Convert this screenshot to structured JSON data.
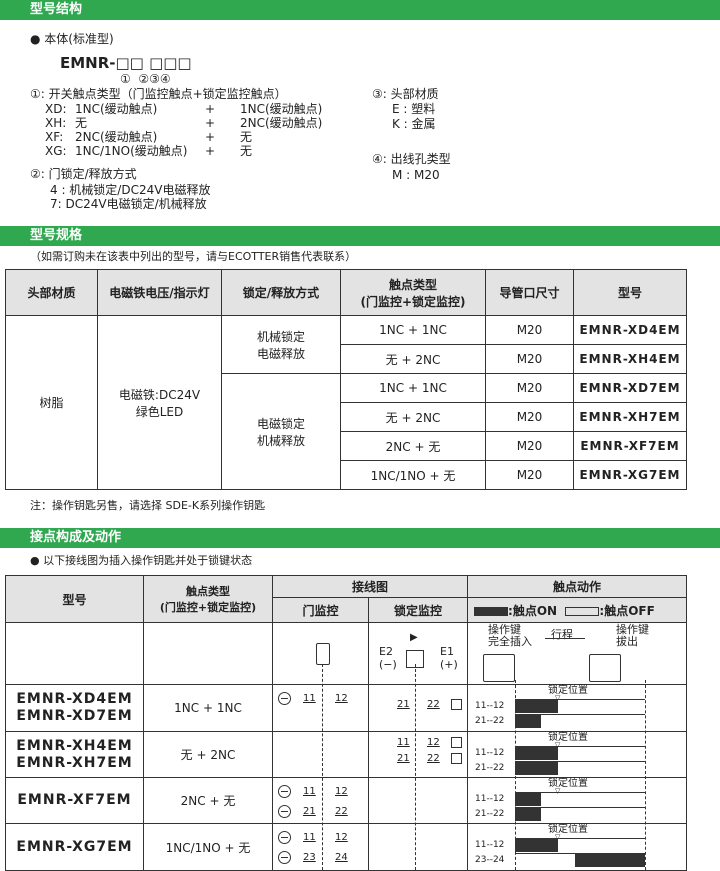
{
  "s1": {
    "title": "型号结构",
    "bullet": "● 本体(标准型)",
    "code": "EMNR-□□ □□□",
    "code_idx": "①  ②③④",
    "c1_title": "①: 开关触点类型（门监控触点+锁定监控触点）",
    "c1_rows": [
      [
        "XD:",
        "1NC(缓动触点)",
        "+",
        "1NC(缓动触点)"
      ],
      [
        "XH:",
        "无",
        "+",
        "2NC(缓动触点)"
      ],
      [
        "XF:",
        "2NC(缓动触点)",
        "+",
        "无"
      ],
      [
        "XG:",
        "1NC/1NO(缓动触点)",
        "+",
        "无"
      ]
    ],
    "c2_title": "②: 门锁定/释放方式",
    "c2_items": [
      "4 : 机械锁定/DC24V电磁释放",
      "7: DC24V电磁锁定/机械释放"
    ],
    "c3_title": "③: 头部材质",
    "c3_items": [
      "E : 塑料",
      "K : 金属"
    ],
    "c4_title": "④: 出线孔类型",
    "c4_items": [
      "M : M20"
    ]
  },
  "s2": {
    "title": "型号规格",
    "note_top": "（如需订购未在该表中列出的型号，请与ECOTTER销售代表联系）",
    "headers": [
      "头部材质",
      "电磁铁电压/指示灯",
      "锁定/释放方式",
      "触点类型\n(门监控+锁定监控)",
      "导管口尺寸",
      "型号"
    ],
    "material": "树脂",
    "voltage": "电磁铁:DC24V\n绿色LED",
    "lock1": "机械锁定\n电磁释放",
    "lock2": "电磁锁定\n机械释放",
    "rows": [
      [
        "1NC + 1NC",
        "M20",
        "EMNR-XD4EM"
      ],
      [
        "无 + 2NC",
        "M20",
        "EMNR-XH4EM"
      ],
      [
        "1NC + 1NC",
        "M20",
        "EMNR-XD7EM"
      ],
      [
        "无 + 2NC",
        "M20",
        "EMNR-XH7EM"
      ],
      [
        "2NC + 无",
        "M20",
        "EMNR-XF7EM"
      ],
      [
        "1NC/1NO + 无",
        "M20",
        "EMNR-XG7EM"
      ]
    ],
    "note_bottom": "注：操作钥匙另售，请选择 SDE-K系列操作钥匙"
  },
  "s3": {
    "title": "接点构成及动作",
    "bullet": "● 以下接线图为插入操作钥匙并处于锁键状态",
    "h_model": "型号",
    "h_contact": "触点类型\n(门监控+锁定监控)",
    "h_wiring": "接线图",
    "h_door": "门监控",
    "h_lock": "锁定监控",
    "h_action": "触点动作",
    "legend_on": ":触点ON",
    "legend_off": ":触点OFF",
    "key_in": "操作键\n完全插入",
    "stroke": "行程",
    "key_out": "操作键\n拔出",
    "e2": "E2\n(−)",
    "e1": "E1\n(+)",
    "lock_pos": "锁定位置",
    "rows": [
      {
        "models": "EMNR-XD4EM\nEMNR-XD7EM",
        "contact": "1NC + 1NC",
        "door": [
          "11",
          "12"
        ],
        "lock": [
          [
            "21",
            "22"
          ]
        ],
        "timing": [
          {
            "label": "11--12",
            "on": [
              0,
              0.33
            ]
          },
          {
            "label": "21--22",
            "on": [
              0,
              0.2
            ]
          }
        ]
      },
      {
        "models": "EMNR-XH4EM\nEMNR-XH7EM",
        "contact": "无 + 2NC",
        "door": null,
        "lock": [
          [
            "11",
            "12"
          ],
          [
            "21",
            "22"
          ]
        ],
        "timing": [
          {
            "label": "11--12",
            "on": [
              0,
              0.33
            ]
          },
          {
            "label": "21--22",
            "on": [
              0,
              0.33
            ]
          }
        ]
      },
      {
        "models": "EMNR-XF7EM",
        "contact": "2NC + 无",
        "door": [
          "11",
          "12",
          "21",
          "22"
        ],
        "lock": [],
        "timing": [
          {
            "label": "11--12",
            "on": [
              0,
              0.2
            ]
          },
          {
            "label": "21--22",
            "on": [
              0,
              0.2
            ]
          }
        ]
      },
      {
        "models": "EMNR-XG7EM",
        "contact": "1NC/1NO + 无",
        "door": [
          "11",
          "12",
          "23",
          "24"
        ],
        "lock": [],
        "timing": [
          {
            "label": "11--12",
            "on": [
              0,
              0.33
            ]
          },
          {
            "label": "23--24",
            "on": [
              0.46,
              1
            ]
          }
        ]
      }
    ]
  },
  "colors": {
    "accent": "#2fa84f",
    "header_bg": "#e3e3e3",
    "on": "#333333"
  }
}
